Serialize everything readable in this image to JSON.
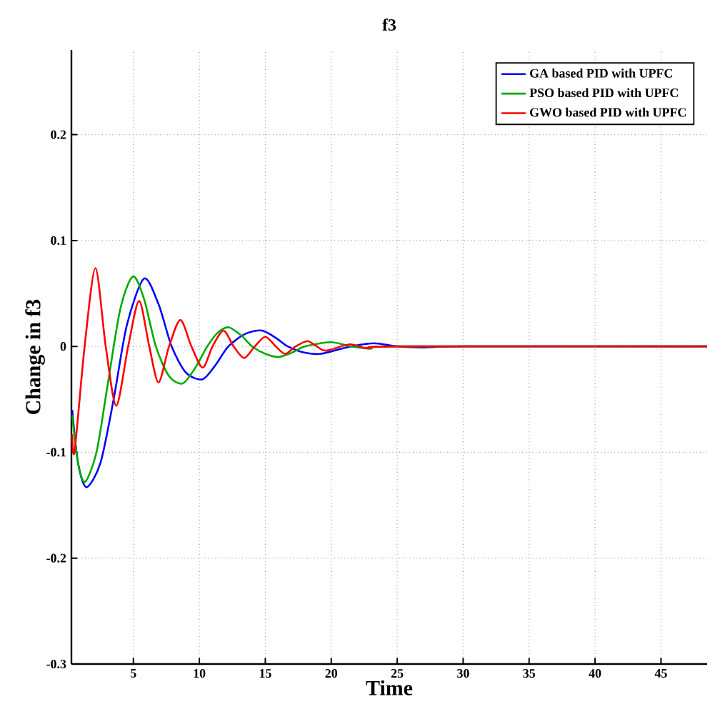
{
  "chart_data": {
    "type": "line",
    "title": "f3",
    "xlabel": "Time",
    "ylabel": "Change in f3",
    "xlim": [
      0.3,
      48.5
    ],
    "ylim": [
      -0.3,
      0.28
    ],
    "xticks": [
      5,
      10,
      15,
      20,
      25,
      30,
      35,
      40,
      45
    ],
    "yticks": [
      -0.3,
      -0.2,
      -0.1,
      0,
      0.1,
      0.2
    ],
    "grid": true,
    "legend": "top right",
    "line_style": "solid",
    "marker": "none",
    "series": [
      {
        "name": "GA based PID with UPFC",
        "color": "#0000ff",
        "x": [
          0.36,
          0.8,
          1.44,
          2.5,
          3.5,
          4.5,
          5.8,
          6.9,
          7.9,
          9,
          10.25,
          11.2,
          12.2,
          13.5,
          14.75,
          15.8,
          16.7,
          18,
          19.2,
          20.5,
          21.5,
          23.2,
          25,
          27,
          30,
          48.5
        ],
        "values": [
          -0.06,
          -0.11,
          -0.133,
          -0.11,
          -0.05,
          0.02,
          0.064,
          0.04,
          0,
          -0.025,
          -0.031,
          -0.018,
          0,
          0.012,
          0.015,
          0.008,
          0,
          -0.006,
          -0.007,
          -0.003,
          0,
          0.003,
          0,
          -0.001,
          0,
          0
        ]
      },
      {
        "name": "PSO based PID with UPFC",
        "color": "#00aa00",
        "x": [
          0.36,
          0.8,
          1.33,
          2.2,
          3,
          4,
          4.96,
          5.8,
          6.7,
          7.7,
          8.74,
          9.7,
          10.6,
          11.4,
          12.23,
          13.2,
          14,
          15,
          16,
          17,
          18,
          19.96,
          21.5,
          23,
          25,
          48.5
        ],
        "values": [
          -0.065,
          -0.11,
          -0.128,
          -0.1,
          -0.04,
          0.035,
          0.066,
          0.045,
          0,
          -0.028,
          -0.035,
          -0.02,
          0,
          0.013,
          0.018,
          0.01,
          0,
          -0.007,
          -0.01,
          -0.006,
          0,
          0.004,
          0,
          -0.002,
          0,
          0
        ]
      },
      {
        "name": "GWO based PID with UPFC",
        "color": "#ff0000",
        "x": [
          0.36,
          0.54,
          1.3,
          2.12,
          2.9,
          3.7,
          4.6,
          5.43,
          6.2,
          6.9,
          7.7,
          8.56,
          9.4,
          10.25,
          11.0,
          11.83,
          12.6,
          13.4,
          14.2,
          15,
          15.8,
          16.5,
          17.3,
          18.2,
          18.9,
          19.6,
          21.4,
          22.8,
          25,
          48.5
        ],
        "values": [
          -0.083,
          -0.099,
          0.0,
          0.074,
          0.0,
          -0.056,
          0.0,
          0.043,
          0.0,
          -0.034,
          0.0,
          0.025,
          0.0,
          -0.02,
          0.0,
          0.015,
          0.0,
          -0.011,
          0.0,
          0.009,
          0.0,
          -0.007,
          0.0,
          0.005,
          0.0,
          -0.004,
          0.002,
          -0.002,
          0,
          0
        ]
      }
    ]
  }
}
